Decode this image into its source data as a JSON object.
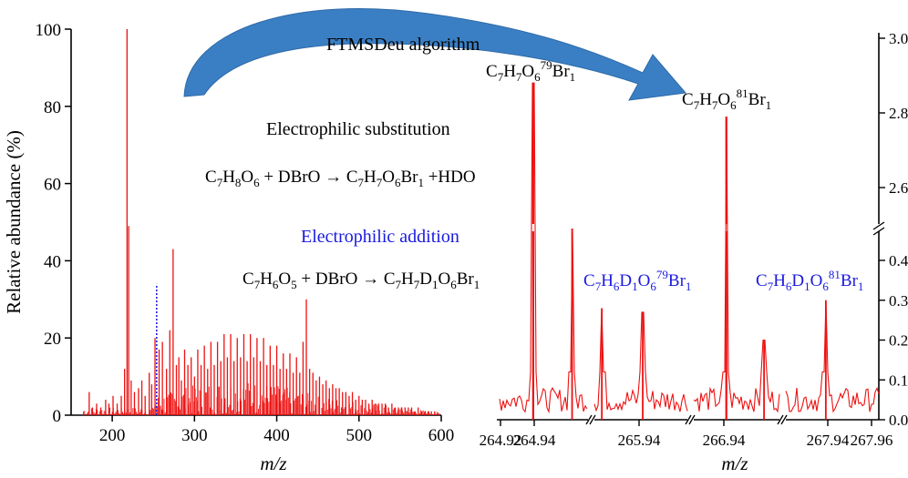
{
  "colors": {
    "spectrum": "#ee1111",
    "blue_text": "#1a1adf",
    "marker": "#2222ee",
    "arrow": "#3a7fc4",
    "axis": "#000000"
  },
  "chart_data": [
    {
      "type": "bar",
      "description_role": "full mass spectrum",
      "xlabel": "m/z",
      "ylabel": "Relative abundance (%)",
      "xlim": [
        150,
        600
      ],
      "ylim": [
        0,
        100
      ],
      "x_ticks": [
        "200",
        "300",
        "400",
        "500",
        "600"
      ],
      "y_ticks": [
        "0",
        "20",
        "40",
        "60",
        "80",
        "100"
      ],
      "peaks": [
        [
          172,
          6
        ],
        [
          176,
          2
        ],
        [
          181,
          3
        ],
        [
          186,
          2
        ],
        [
          192,
          4
        ],
        [
          196,
          3
        ],
        [
          201,
          5
        ],
        [
          206,
          3
        ],
        [
          211,
          5
        ],
        [
          215,
          12
        ],
        [
          218,
          100
        ],
        [
          220,
          49
        ],
        [
          223,
          9
        ],
        [
          227,
          6
        ],
        [
          232,
          7
        ],
        [
          236,
          9
        ],
        [
          240,
          5
        ],
        [
          245,
          11
        ],
        [
          248,
          8
        ],
        [
          252,
          20
        ],
        [
          257,
          17
        ],
        [
          261,
          19
        ],
        [
          266,
          12
        ],
        [
          270,
          22
        ],
        [
          274,
          43
        ],
        [
          278,
          13
        ],
        [
          281,
          15
        ],
        [
          284,
          9
        ],
        [
          288,
          17
        ],
        [
          292,
          13
        ],
        [
          296,
          15
        ],
        [
          300,
          10
        ],
        [
          304,
          17
        ],
        [
          308,
          13
        ],
        [
          312,
          18
        ],
        [
          316,
          12
        ],
        [
          320,
          19
        ],
        [
          324,
          13
        ],
        [
          328,
          19
        ],
        [
          332,
          14
        ],
        [
          336,
          21
        ],
        [
          340,
          15
        ],
        [
          344,
          21
        ],
        [
          348,
          14
        ],
        [
          352,
          20
        ],
        [
          356,
          15
        ],
        [
          360,
          21
        ],
        [
          364,
          14
        ],
        [
          368,
          21
        ],
        [
          372,
          15
        ],
        [
          376,
          20
        ],
        [
          380,
          14
        ],
        [
          384,
          20
        ],
        [
          388,
          13
        ],
        [
          392,
          18
        ],
        [
          396,
          13
        ],
        [
          400,
          18
        ],
        [
          404,
          12
        ],
        [
          408,
          16
        ],
        [
          412,
          12
        ],
        [
          416,
          16
        ],
        [
          420,
          11
        ],
        [
          424,
          15
        ],
        [
          428,
          11
        ],
        [
          432,
          19
        ],
        [
          436,
          30
        ],
        [
          440,
          12
        ],
        [
          444,
          11
        ],
        [
          448,
          9
        ],
        [
          452,
          10
        ],
        [
          456,
          8
        ],
        [
          460,
          9
        ],
        [
          464,
          7
        ],
        [
          468,
          8
        ],
        [
          472,
          7
        ],
        [
          476,
          7
        ],
        [
          480,
          6
        ],
        [
          484,
          6
        ],
        [
          488,
          5
        ],
        [
          492,
          6
        ],
        [
          496,
          4
        ],
        [
          500,
          5
        ],
        [
          504,
          4
        ],
        [
          508,
          4
        ],
        [
          512,
          3
        ],
        [
          516,
          4
        ],
        [
          520,
          3
        ],
        [
          524,
          3
        ],
        [
          528,
          3
        ],
        [
          532,
          3
        ],
        [
          536,
          2
        ],
        [
          540,
          3
        ],
        [
          544,
          2
        ],
        [
          548,
          2
        ],
        [
          552,
          2
        ],
        [
          556,
          2
        ],
        [
          560,
          2
        ],
        [
          564,
          2
        ],
        [
          568,
          1
        ],
        [
          572,
          2
        ],
        [
          576,
          1
        ],
        [
          580,
          1
        ],
        [
          584,
          1
        ],
        [
          588,
          1
        ],
        [
          592,
          1
        ]
      ],
      "marker_line": {
        "x": 254,
        "y": 34
      }
    },
    {
      "type": "line",
      "description_role": "zoomed segments with broken axes",
      "xlabel": "m/z",
      "y_ticks_upper": [
        "2.6",
        "2.8",
        "3.0"
      ],
      "y_ticks_lower": [
        "0.0",
        "0.1",
        "0.2",
        "0.3",
        "0.4"
      ],
      "x_ticks": [
        "264.92",
        "264.94",
        "265.94",
        "266.94",
        "267.94",
        "267.96"
      ],
      "peaks": [
        {
          "segment": 0,
          "pos": 0.38,
          "value": 2.88,
          "label": "C7H7O679Br1"
        },
        {
          "segment": 0,
          "pos": 0.82,
          "value": 0.48,
          "label": ""
        },
        {
          "segment": 1,
          "pos": 0.08,
          "value": 0.28,
          "label": ""
        },
        {
          "segment": 1,
          "pos": 0.52,
          "value": 0.27,
          "label": "C7H6D1O679Br1"
        },
        {
          "segment": 2,
          "pos": 0.38,
          "value": 2.79,
          "label": "C7H7O681Br1"
        },
        {
          "segment": 2,
          "pos": 0.82,
          "value": 0.2,
          "label": ""
        },
        {
          "segment": 3,
          "pos": 0.43,
          "value": 0.3,
          "label": "C7H6D1O681Br1"
        }
      ]
    }
  ],
  "annotations": {
    "algorithm": "FTMSDeu algorithm",
    "electrophilic_substitution": "Electrophilic substitution",
    "electrophilic_addition": "Electrophilic addition"
  }
}
